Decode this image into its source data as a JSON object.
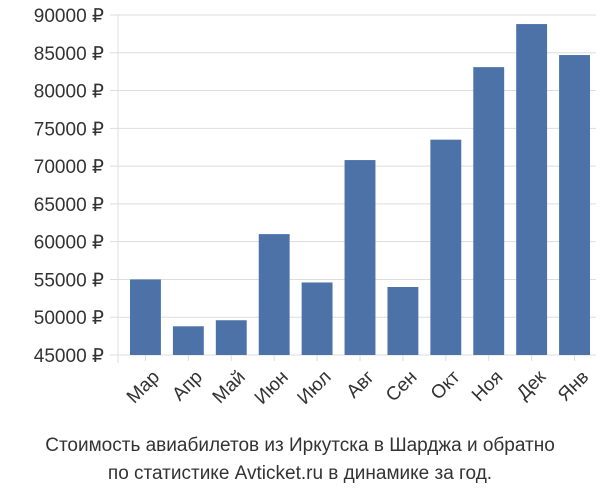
{
  "chart_data": {
    "type": "bar",
    "categories": [
      "Мар",
      "Апр",
      "Май",
      "Июн",
      "Июл",
      "Авг",
      "Сен",
      "Окт",
      "Ноя",
      "Дек",
      "Янв"
    ],
    "values": [
      55000,
      48800,
      49600,
      61000,
      54600,
      70800,
      54000,
      73500,
      83100,
      88800,
      84700
    ],
    "ylim": [
      45000,
      90000
    ],
    "yticks": [
      45000,
      50000,
      55000,
      60000,
      65000,
      70000,
      75000,
      80000,
      85000,
      90000
    ],
    "ytick_labels": [
      "45000 ₽",
      "50000 ₽",
      "55000 ₽",
      "60000 ₽",
      "65000 ₽",
      "70000 ₽",
      "75000 ₽",
      "80000 ₽",
      "85000 ₽",
      "90000 ₽"
    ],
    "grid": true,
    "bar_color": "#4c72a8",
    "grid_color": "#dddddd"
  },
  "caption": {
    "line1": "Стоимость авиабилетов из Иркутска в Шарджа и обратно",
    "line2": "по статистике Avticket.ru в динамике за год."
  }
}
